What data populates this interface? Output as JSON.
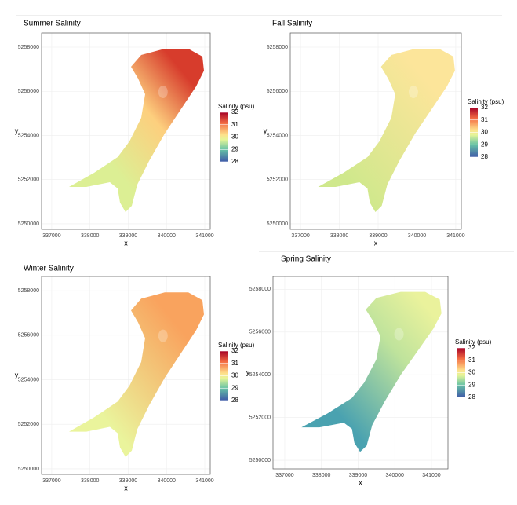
{
  "panels": [
    {
      "title": "Summer Salinity",
      "x_label": "x",
      "y_label": "y",
      "xlim": [
        336735,
        341143
      ],
      "ylim": [
        5249750,
        5258640
      ],
      "xticks": [
        337000,
        338000,
        339000,
        340000,
        341000
      ],
      "yticks": [
        5250000,
        5252000,
        5254000,
        5256000,
        5258000
      ],
      "legend": {
        "title": "Salinity (psu)",
        "ticks": [
          32,
          31,
          30,
          29,
          28
        ]
      }
    },
    {
      "title": "Fall Salinity",
      "x_label": "x",
      "y_label": "y",
      "xlim": [
        336735,
        341143
      ],
      "ylim": [
        5249750,
        5258640
      ],
      "xticks": [
        337000,
        338000,
        339000,
        340000,
        341000
      ],
      "yticks": [
        5250000,
        5252000,
        5254000,
        5256000,
        5258000
      ],
      "legend": {
        "title": "Salinity (psu)",
        "ticks": [
          32,
          31,
          30,
          29,
          28
        ]
      }
    },
    {
      "title": "Winter Salinity",
      "x_label": "x",
      "y_label": "y",
      "xlim": [
        336735,
        341143
      ],
      "ylim": [
        5249750,
        5258640
      ],
      "xticks": [
        337000,
        338000,
        339000,
        340000,
        341000
      ],
      "yticks": [
        5250000,
        5252000,
        5254000,
        5256000,
        5258000
      ],
      "legend": {
        "title": "Salinity (psu)",
        "ticks": [
          32,
          31,
          30,
          29,
          28
        ]
      }
    },
    {
      "title": "Spring Salinity",
      "x_label": "x",
      "y_label": "y",
      "xlim": [
        336680,
        341450
      ],
      "ylim": [
        5249600,
        5258600
      ],
      "xticks": [
        337000,
        338000,
        339000,
        340000,
        341000
      ],
      "yticks": [
        5250000,
        5252000,
        5254000,
        5256000,
        5258000
      ],
      "legend": {
        "title": "Salinity (psu)",
        "ticks": [
          32,
          31,
          30,
          29,
          28
        ]
      }
    }
  ]
}
